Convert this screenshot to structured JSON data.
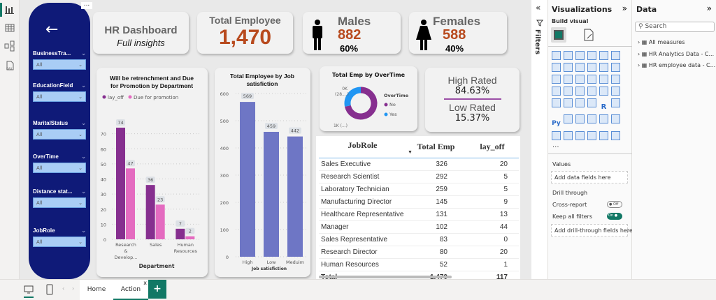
{
  "left_rail": {
    "icons": [
      "report-view-icon",
      "table-view-icon",
      "model-view-icon",
      "dax-query-icon"
    ]
  },
  "slicers": {
    "back_icon": "←",
    "more_label": "...",
    "items": [
      {
        "label": "BusinessTra...",
        "value": "All"
      },
      {
        "label": "EducationField",
        "value": "All"
      },
      {
        "label": "MaritalStatus",
        "value": "All"
      },
      {
        "label": "OverTime",
        "value": "All"
      },
      {
        "label": "Distance stat...",
        "value": "All"
      },
      {
        "label": "JobRole",
        "value": "All"
      }
    ]
  },
  "title_card": {
    "title": "HR Dashboard",
    "subtitle": "Full insights"
  },
  "total_card": {
    "title": "Total Employee",
    "value": "1,470"
  },
  "males_card": {
    "title": "Males",
    "value": "882",
    "pct": "60%"
  },
  "females_card": {
    "title": "Females",
    "value": "588",
    "pct": "40%"
  },
  "rating_card": {
    "high_label": "High Rated",
    "high_value": "84.63%",
    "low_label": "Low Rated",
    "low_value": "15.37%"
  },
  "colors": {
    "navy": "#0f1a78",
    "orange": "#b84a1e",
    "purple": "#862f8f",
    "pink": "#e46bc0",
    "slate": "#6e76c5",
    "blue": "#2196f3",
    "teal": "#117865"
  },
  "chart_data": [
    {
      "type": "bar",
      "title": "Will be retrenchment and Due for Promotion by Department",
      "xlabel": "Department",
      "ylabel": "",
      "categories": [
        "Research & Develop...",
        "Sales",
        "Human Resources"
      ],
      "series": [
        {
          "name": "lay_off",
          "values": [
            74,
            36,
            7
          ],
          "color": "#862f8f"
        },
        {
          "name": "Due for promotion",
          "values": [
            47,
            23,
            2
          ],
          "color": "#e46bc0"
        }
      ],
      "yticks": [
        0,
        10,
        20,
        30,
        40,
        50,
        60,
        70
      ],
      "ylim": [
        0,
        80
      ],
      "legend": "top-left",
      "grid": true
    },
    {
      "type": "bar",
      "title": "Total Employee by Job satisfiction",
      "xlabel": "Job satisfiction",
      "ylabel": "",
      "categories": [
        "High",
        "Low",
        "Meduim"
      ],
      "values": [
        569,
        459,
        442
      ],
      "color": "#6e76c5",
      "yticks": [
        0,
        100,
        200,
        300,
        400,
        500,
        600
      ],
      "ylim": [
        0,
        600
      ],
      "grid": true
    },
    {
      "type": "pie",
      "title": "Total Emp by OverTime",
      "legend_title": "OverTime",
      "labels": [
        "No",
        "Yes"
      ],
      "values": [
        1054,
        416
      ],
      "colors": [
        "#862f8f",
        "#2196f3"
      ],
      "data_labels": [
        "1K (...)",
        "0K (28....)"
      ],
      "legend": "right"
    },
    {
      "type": "table",
      "columns": [
        "JobRole",
        "Total Emp",
        "lay_off"
      ],
      "sort_indicator": "▼",
      "rows": [
        [
          "Sales Executive",
          "326",
          "20"
        ],
        [
          "Research Scientist",
          "292",
          "5"
        ],
        [
          "Laboratory Technician",
          "259",
          "5"
        ],
        [
          "Manufacturing Director",
          "145",
          "9"
        ],
        [
          "Healthcare Representative",
          "131",
          "13"
        ],
        [
          "Manager",
          "102",
          "44"
        ],
        [
          "Sales Representative",
          "83",
          "0"
        ],
        [
          "Research Director",
          "80",
          "20"
        ],
        [
          "Human Resources",
          "52",
          "1"
        ]
      ],
      "total": [
        "Total",
        "1,470",
        "117"
      ]
    }
  ],
  "filters_pane": {
    "label": "Filters",
    "collapse_icon": "«"
  },
  "visualizations": {
    "title": "Visualizations",
    "expand_icon": "»",
    "build_visual": "Build visual",
    "more": "...",
    "values_label": "Values",
    "values_placeholder": "Add data fields here",
    "drill_through": "Drill through",
    "cross_report": "Cross-report",
    "cross_report_state": "Off",
    "keep_filters": "Keep all filters",
    "keep_filters_state": "On",
    "drill_placeholder": "Add drill-through fields here",
    "r_icon": "R",
    "py_icon": "Py"
  },
  "data_pane": {
    "title": "Data",
    "expand_icon": "»",
    "search_placeholder": "Search",
    "items": [
      "All measures",
      "HR Analytics Data - C...",
      "HR employee data - C..."
    ]
  },
  "bottom": {
    "tabs": [
      "Home",
      "Action"
    ],
    "close_icon": "x",
    "add_icon": "+"
  }
}
